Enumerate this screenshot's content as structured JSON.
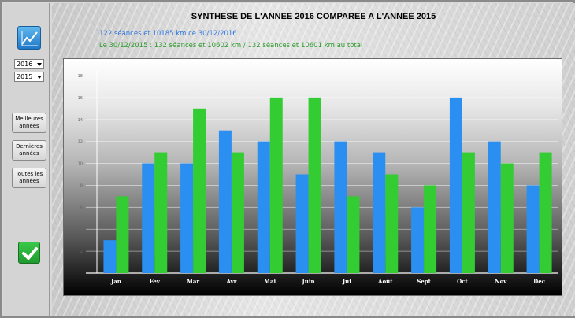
{
  "window": {
    "title": "SYNTHESE DE L'ANNEE 2016 COMPAREE A L'ANNEE 2015",
    "line_current": "122 séances et 10185 km ce 30/12/2016",
    "line_previous": "Le 30/12/2015 : 132 séances et 10602 km / 132 séances et 10601 km au total"
  },
  "sidebar": {
    "year_select_1": "2016",
    "year_select_2": "2015",
    "buttons": [
      {
        "label_line1": "Meilleures",
        "label_line2": "années"
      },
      {
        "label_line1": "Dernières",
        "label_line2": "années"
      },
      {
        "label_line1": "Toutes les",
        "label_line2": "années"
      }
    ],
    "icons": {
      "app": "chart-icon",
      "confirm": "checkmark-icon"
    }
  },
  "colors": {
    "current_year": "#2b8ff2",
    "previous_year": "#33cc33",
    "line_current": "#2f78e0",
    "line_previous": "#2b9a2b"
  },
  "chart_data": {
    "type": "bar",
    "categories": [
      "Jan",
      "Fev",
      "Mar",
      "Avr",
      "Mai",
      "Juin",
      "Jui",
      "Août",
      "Sept",
      "Oct",
      "Nov",
      "Dec"
    ],
    "series": [
      {
        "values": [
          3,
          10,
          10,
          13,
          12,
          9,
          12,
          11,
          6,
          16,
          12,
          8
        ],
        "color": "#2b8ff2"
      },
      {
        "values": [
          7,
          11,
          15,
          11,
          16,
          16,
          7,
          9,
          8,
          11,
          10,
          11
        ],
        "color": "#33cc33"
      }
    ],
    "y_ticks": [
      2,
      4,
      6,
      8,
      10,
      12,
      14,
      16,
      18
    ],
    "ylim": [
      0,
      18.5
    ],
    "grid": true,
    "legend": "none"
  }
}
